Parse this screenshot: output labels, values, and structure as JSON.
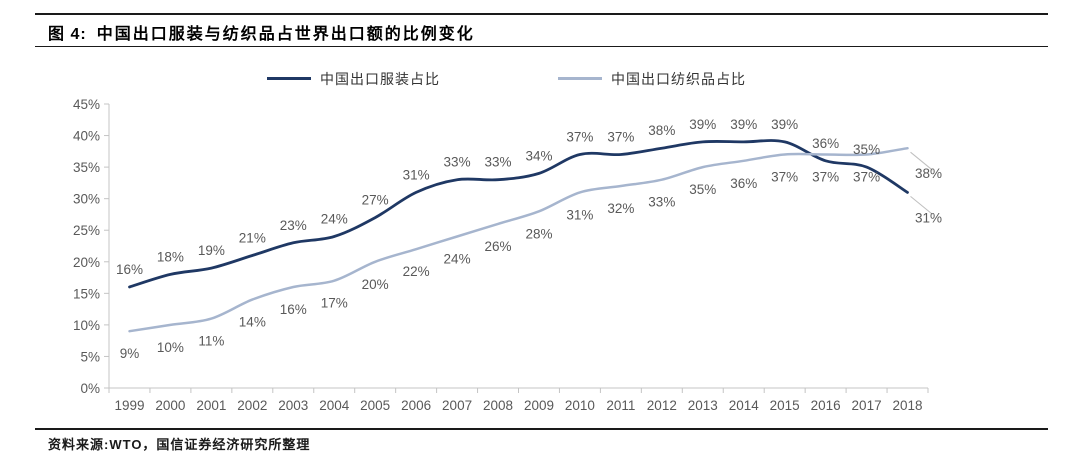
{
  "header": {
    "figure_label": "图 4:",
    "title": "中国出口服装与纺织品占世界出口额的比例变化"
  },
  "footer": {
    "source_label": "资料来源:",
    "source_text": "WTO，国信证券经济研究所整理"
  },
  "chart_data": {
    "type": "line",
    "title": "中国出口服装与纺织品占世界出口额的比例变化",
    "categories": [
      "1999",
      "2000",
      "2001",
      "2002",
      "2003",
      "2004",
      "2005",
      "2006",
      "2007",
      "2008",
      "2009",
      "2010",
      "2011",
      "2012",
      "2013",
      "2014",
      "2015",
      "2016",
      "2017",
      "2018"
    ],
    "series": [
      {
        "name": "中国出口服装占比",
        "color": "#1F3864",
        "values": [
          16,
          18,
          19,
          21,
          23,
          24,
          27,
          31,
          33,
          33,
          34,
          37,
          37,
          38,
          39,
          39,
          39,
          36,
          35,
          31
        ],
        "data_labels": [
          "16%",
          "18%",
          "19%",
          "21%",
          "23%",
          "24%",
          "27%",
          "31%",
          "33%",
          "33%",
          "34%",
          "37%",
          "37%",
          "38%",
          "39%",
          "39%",
          "39%",
          "36%",
          "35%",
          "31%"
        ],
        "label_position": "above",
        "last_label_leader": true
      },
      {
        "name": "中国出口纺织品占比",
        "color": "#A6B5CE",
        "values": [
          9,
          10,
          11,
          14,
          16,
          17,
          20,
          22,
          24,
          26,
          28,
          31,
          32,
          33,
          35,
          36,
          37,
          37,
          37,
          38
        ],
        "data_labels": [
          "9%",
          "10%",
          "11%",
          "14%",
          "16%",
          "17%",
          "20%",
          "22%",
          "24%",
          "26%",
          "28%",
          "31%",
          "32%",
          "33%",
          "35%",
          "36%",
          "37%",
          "37%",
          "37%",
          "38%"
        ],
        "label_position": "below",
        "last_label_leader": true
      }
    ],
    "xlabel": "",
    "ylabel": "",
    "ylim": [
      0,
      45
    ],
    "ytick_step": 5,
    "ytick_labels": [
      "0%",
      "5%",
      "10%",
      "15%",
      "20%",
      "25%",
      "30%",
      "35%",
      "40%",
      "45%"
    ],
    "grid": false,
    "legend_position": "top",
    "smooth_lines": true,
    "axis_color": "#c4c4c4",
    "label_color": "#595959",
    "leader_color": "#bfbfbf"
  }
}
